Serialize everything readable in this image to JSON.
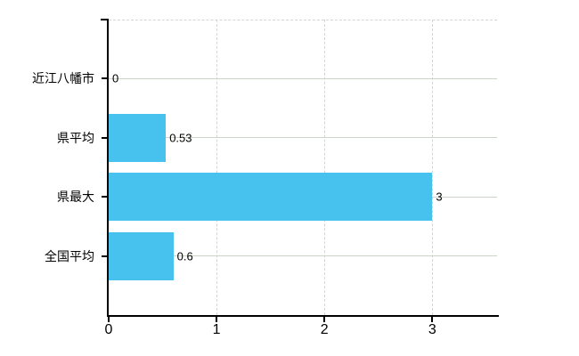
{
  "chart_data": {
    "type": "bar",
    "orientation": "horizontal",
    "title": "",
    "xlabel": "",
    "ylabel": "",
    "categories": [
      "近江八幡市",
      "県平均",
      "県最大",
      "全国平均"
    ],
    "values": [
      0,
      0.53,
      3,
      0.6
    ],
    "value_labels": [
      "0",
      "0.53",
      "3",
      "0.6"
    ],
    "x_ticks": [
      0,
      1,
      2,
      3
    ],
    "x_tick_labels": [
      "0",
      "1",
      "2",
      "3"
    ],
    "xlim": [
      0,
      3.6
    ],
    "grid": {
      "horizontal": "solid",
      "vertical": "dashed",
      "plot_top_border": "dashed"
    },
    "legend": "none",
    "colors": {
      "bar": "#47C2EF",
      "axis": "#000000",
      "h_gridline": "#cdd5c9",
      "v_gridline": "#d4d4d4",
      "text": "#000000",
      "background": "#ffffff"
    }
  }
}
